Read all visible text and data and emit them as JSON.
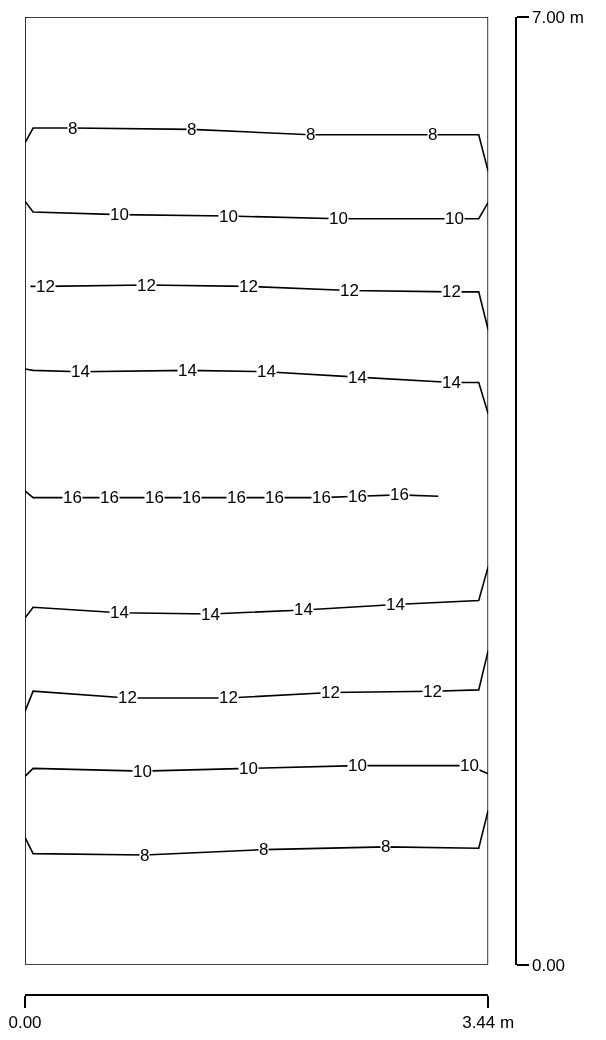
{
  "chart_data": {
    "type": "line",
    "series": [
      {
        "color": "#000000",
        "x": [
          0,
          0.06,
          0.35,
          1.24,
          2.12,
          3.03,
          3.37,
          3.44
        ],
        "values": [
          6.07,
          6.18,
          6.18,
          6.17,
          6.13,
          6.13,
          6.13,
          5.86
        ]
      },
      {
        "color": "#000000",
        "x": [
          0,
          0.06,
          0.7,
          1.51,
          2.33,
          3.19,
          3.37,
          3.44
        ],
        "values": [
          5.64,
          5.56,
          5.54,
          5.53,
          5.51,
          5.51,
          5.51,
          5.63
        ]
      },
      {
        "color": "#000000",
        "x": [
          0.04,
          0.15,
          0.9,
          1.66,
          2.41,
          3.17,
          3.37,
          3.44
        ],
        "values": [
          5.01,
          5.01,
          5.02,
          5.01,
          4.98,
          4.97,
          4.97,
          4.69
        ]
      },
      {
        "color": "#000000",
        "x": [
          0,
          0.06,
          0.41,
          1.21,
          1.79,
          2.47,
          3.17,
          3.37,
          3.44
        ],
        "values": [
          4.4,
          4.39,
          4.38,
          4.39,
          4.38,
          4.34,
          4.3,
          4.3,
          4.07
        ]
      },
      {
        "color": "#000000",
        "x": [
          0,
          0.06,
          0.35,
          0.63,
          0.96,
          1.24,
          1.57,
          1.85,
          2.2,
          2.47,
          2.78,
          3.07
        ],
        "values": [
          3.5,
          3.45,
          3.45,
          3.45,
          3.45,
          3.45,
          3.45,
          3.45,
          3.45,
          3.46,
          3.47,
          3.46
        ]
      },
      {
        "color": "#000000",
        "x": [
          0,
          0.06,
          0.7,
          1.38,
          2.07,
          2.75,
          3.37,
          3.44
        ],
        "values": [
          2.56,
          2.64,
          2.6,
          2.59,
          2.62,
          2.66,
          2.69,
          2.94
        ]
      },
      {
        "color": "#000000",
        "x": [
          0,
          0.06,
          0.76,
          1.51,
          2.27,
          3.03,
          3.37,
          3.44
        ],
        "values": [
          1.87,
          2.02,
          1.97,
          1.97,
          2.01,
          2.02,
          2.03,
          2.32
        ]
      },
      {
        "color": "#000000",
        "x": [
          0,
          0.06,
          0.87,
          1.66,
          2.47,
          3.3,
          3.44
        ],
        "values": [
          1.39,
          1.45,
          1.43,
          1.45,
          1.47,
          1.47,
          1.41
        ]
      },
      {
        "color": "#000000",
        "x": [
          0,
          0.06,
          0.89,
          1.77,
          2.68,
          3.37,
          3.44
        ],
        "values": [
          0.94,
          0.82,
          0.81,
          0.85,
          0.87,
          0.86,
          1.14
        ]
      }
    ],
    "annotations": [
      {
        "text": "8",
        "x": 0.35,
        "y": 6.18
      },
      {
        "text": "8",
        "x": 1.24,
        "y": 6.17
      },
      {
        "text": "8",
        "x": 2.12,
        "y": 6.13
      },
      {
        "text": "8",
        "x": 3.03,
        "y": 6.13
      },
      {
        "text": "10",
        "x": 0.7,
        "y": 5.54
      },
      {
        "text": "10",
        "x": 1.51,
        "y": 5.53
      },
      {
        "text": "10",
        "x": 2.33,
        "y": 5.51
      },
      {
        "text": "10",
        "x": 3.19,
        "y": 5.51
      },
      {
        "text": "12",
        "x": 0.15,
        "y": 5.01
      },
      {
        "text": "12",
        "x": 0.9,
        "y": 5.02
      },
      {
        "text": "12",
        "x": 1.66,
        "y": 5.01
      },
      {
        "text": "12",
        "x": 2.41,
        "y": 4.98
      },
      {
        "text": "12",
        "x": 3.17,
        "y": 4.97
      },
      {
        "text": "14",
        "x": 0.41,
        "y": 4.38
      },
      {
        "text": "14",
        "x": 1.21,
        "y": 4.39
      },
      {
        "text": "14",
        "x": 1.79,
        "y": 4.38
      },
      {
        "text": "14",
        "x": 2.47,
        "y": 4.34
      },
      {
        "text": "14",
        "x": 3.17,
        "y": 4.3
      },
      {
        "text": "16",
        "x": 0.35,
        "y": 3.45
      },
      {
        "text": "16",
        "x": 0.63,
        "y": 3.45
      },
      {
        "text": "16",
        "x": 0.96,
        "y": 3.45
      },
      {
        "text": "16",
        "x": 1.24,
        "y": 3.45
      },
      {
        "text": "16",
        "x": 1.57,
        "y": 3.45
      },
      {
        "text": "16",
        "x": 1.85,
        "y": 3.45
      },
      {
        "text": "16",
        "x": 2.2,
        "y": 3.45
      },
      {
        "text": "16",
        "x": 2.47,
        "y": 3.46
      },
      {
        "text": "16",
        "x": 2.78,
        "y": 3.47
      },
      {
        "text": "14",
        "x": 0.7,
        "y": 2.6
      },
      {
        "text": "14",
        "x": 1.38,
        "y": 2.59
      },
      {
        "text": "14",
        "x": 2.07,
        "y": 2.62
      },
      {
        "text": "14",
        "x": 2.75,
        "y": 2.66
      },
      {
        "text": "12",
        "x": 0.76,
        "y": 1.97
      },
      {
        "text": "12",
        "x": 1.51,
        "y": 1.97
      },
      {
        "text": "12",
        "x": 2.27,
        "y": 2.01
      },
      {
        "text": "12",
        "x": 3.03,
        "y": 2.02
      },
      {
        "text": "10",
        "x": 0.87,
        "y": 1.43
      },
      {
        "text": "10",
        "x": 1.66,
        "y": 1.45
      },
      {
        "text": "10",
        "x": 2.47,
        "y": 1.47
      },
      {
        "text": "10",
        "x": 3.3,
        "y": 1.47
      },
      {
        "text": "8",
        "x": 0.89,
        "y": 0.81
      },
      {
        "text": "8",
        "x": 1.77,
        "y": 0.85
      },
      {
        "text": "8",
        "x": 2.68,
        "y": 0.87
      }
    ],
    "xlim": [
      0,
      3.44
    ],
    "ylim": [
      0,
      7
    ],
    "xticks": [
      {
        "value": 0,
        "label": "0.00"
      },
      {
        "value": 3.44,
        "label": "3.44 m"
      }
    ],
    "yticks": [
      {
        "value": 0,
        "label": "0.00"
      },
      {
        "value": 7,
        "label": "7.00 m"
      }
    ],
    "line_style": "solid"
  }
}
